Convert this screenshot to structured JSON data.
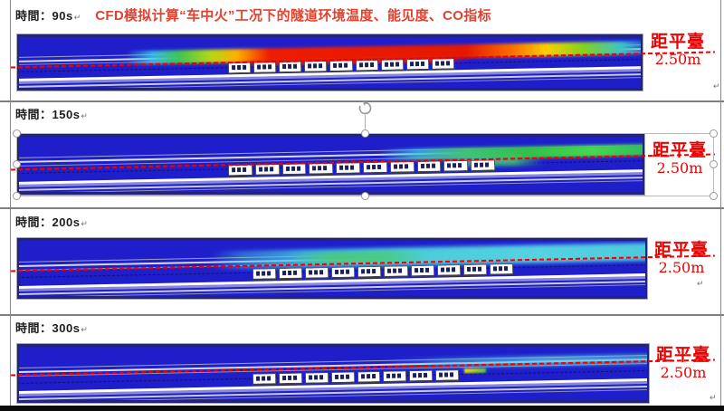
{
  "title": "CFD模拟计算“车中火”工况下的隧道环境温度、能见度、CO指标",
  "panels": [
    {
      "time_label": "時間：90s",
      "para_mark": "↵",
      "platform_label": "距平臺",
      "platform_distance": "2.50m",
      "train_cars": 9
    },
    {
      "time_label": "時間：150s",
      "para_mark": "↵",
      "platform_label": "距平臺",
      "platform_distance": "2.50m",
      "train_cars": 10
    },
    {
      "time_label": "時間：200s",
      "para_mark": "↵",
      "platform_label": "距平臺",
      "platform_distance": "2.50m",
      "train_cars": 10
    },
    {
      "time_label": "時間：300s",
      "para_mark": "↵",
      "platform_label": "距平臺",
      "platform_distance": "2.50m",
      "train_cars": 8
    }
  ],
  "colors": {
    "tunnel_blue": "#1e1ecb",
    "title_red": "#e5402e",
    "label_red": "#ee0000"
  }
}
